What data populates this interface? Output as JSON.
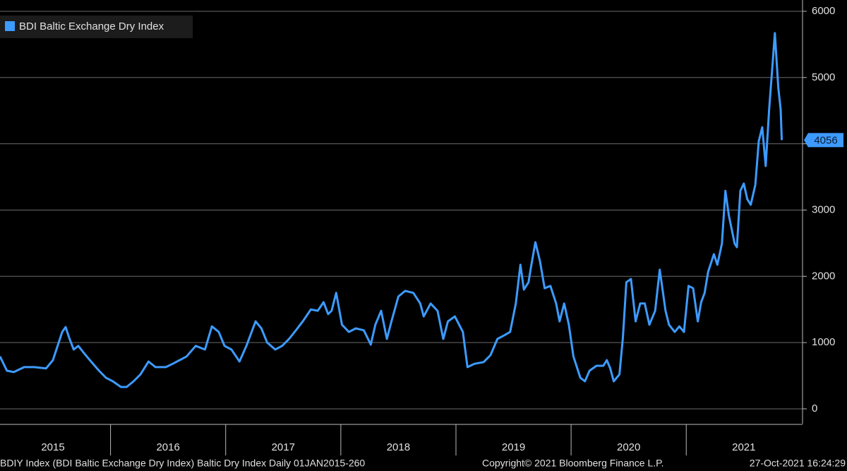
{
  "chart_data": {
    "type": "line",
    "series": [
      {
        "name": "BDI Baltic Exchange Dry Index",
        "color": "#3d9bff",
        "x": [
          2015.04,
          2015.1,
          2015.16,
          2015.25,
          2015.34,
          2015.44,
          2015.5,
          2015.53,
          2015.58,
          2015.61,
          2015.64,
          2015.68,
          2015.72,
          2015.77,
          2015.83,
          2015.9,
          2015.96,
          2016.02,
          2016.09,
          2016.14,
          2016.2,
          2016.26,
          2016.33,
          2016.39,
          2016.48,
          2016.54,
          2016.6,
          2016.66,
          2016.74,
          2016.82,
          2016.88,
          2016.94,
          2016.99,
          2017.05,
          2017.12,
          2017.18,
          2017.26,
          2017.31,
          2017.36,
          2017.43,
          2017.49,
          2017.55,
          2017.61,
          2017.67,
          2017.74,
          2017.8,
          2017.85,
          2017.89,
          2017.92,
          2017.96,
          2018.01,
          2018.07,
          2018.13,
          2018.2,
          2018.26,
          2018.3,
          2018.35,
          2018.4,
          2018.44,
          2018.5,
          2018.56,
          2018.63,
          2018.69,
          2018.72,
          2018.78,
          2018.84,
          2018.89,
          2018.93,
          2018.99,
          2019.06,
          2019.1,
          2019.16,
          2019.24,
          2019.3,
          2019.36,
          2019.42,
          2019.47,
          2019.52,
          2019.56,
          2019.59,
          2019.63,
          2019.65,
          2019.69,
          2019.73,
          2019.77,
          2019.82,
          2019.87,
          2019.9,
          2019.94,
          2019.98,
          2020.02,
          2020.08,
          2020.12,
          2020.16,
          2020.22,
          2020.28,
          2020.31,
          2020.34,
          2020.37,
          2020.42,
          2020.45,
          2020.48,
          2020.52,
          2020.56,
          2020.6,
          2020.64,
          2020.68,
          2020.73,
          2020.77,
          2020.82,
          2020.85,
          2020.9,
          2020.94,
          2020.98,
          2021.02,
          2021.06,
          2021.1,
          2021.13,
          2021.16,
          2021.19,
          2021.24,
          2021.27,
          2021.31,
          2021.34,
          2021.37,
          2021.42,
          2021.44,
          2021.47,
          2021.5,
          2021.53,
          2021.56,
          2021.6,
          2021.63,
          2021.66,
          2021.69,
          2021.72,
          2021.75,
          2021.77,
          2021.8,
          2021.82,
          2021.83
        ],
        "values": [
          790,
          575,
          555,
          630,
          630,
          610,
          735,
          895,
          1160,
          1235,
          1075,
          895,
          950,
          840,
          715,
          575,
          470,
          415,
          330,
          330,
          415,
          520,
          715,
          630,
          630,
          680,
          735,
          790,
          950,
          895,
          1245,
          1160,
          950,
          895,
          715,
          950,
          1320,
          1215,
          1000,
          895,
          950,
          1055,
          1185,
          1320,
          1500,
          1480,
          1610,
          1430,
          1480,
          1750,
          1270,
          1160,
          1215,
          1185,
          970,
          1270,
          1480,
          1055,
          1320,
          1695,
          1780,
          1750,
          1590,
          1395,
          1590,
          1480,
          1055,
          1320,
          1395,
          1160,
          630,
          680,
          705,
          810,
          1055,
          1110,
          1160,
          1590,
          2175,
          1800,
          1910,
          2120,
          2515,
          2225,
          1820,
          1855,
          1590,
          1320,
          1590,
          1270,
          790,
          470,
          415,
          575,
          650,
          650,
          735,
          610,
          415,
          520,
          1075,
          1910,
          1960,
          1320,
          1590,
          1590,
          1270,
          1480,
          2100,
          1480,
          1270,
          1160,
          1245,
          1160,
          1855,
          1820,
          1320,
          1610,
          1750,
          2065,
          2335,
          2175,
          2495,
          3290,
          2920,
          2495,
          2440,
          3290,
          3400,
          3165,
          3080,
          3380,
          4040,
          4250,
          3665,
          4520,
          5210,
          5670,
          4840,
          4520,
          4056
        ]
      }
    ],
    "xlim": [
      2015.04,
      2022.01
    ],
    "xticks": [
      {
        "value": 2015,
        "label": "2015"
      },
      {
        "value": 2016,
        "label": "2016"
      },
      {
        "value": 2017,
        "label": "2017"
      },
      {
        "value": 2018,
        "label": "2018"
      },
      {
        "value": 2019,
        "label": "2019"
      },
      {
        "value": 2020,
        "label": "2020"
      },
      {
        "value": 2021,
        "label": "2021"
      }
    ],
    "ylim": [
      -224,
      6170
    ],
    "yticks": [
      0,
      1000,
      2000,
      3000,
      4000,
      5000,
      6000
    ],
    "grid": true,
    "legend": "upper left",
    "footer": {
      "source": "BDIY Index (BDI Baltic Exchange Dry Index) Baltic Dry Index  Daily 01JAN2015-260",
      "copyright": "Copyright© 2021 Bloomberg Finance L.P.",
      "timestamp": "27-Oct-2021 16:24:29"
    }
  }
}
